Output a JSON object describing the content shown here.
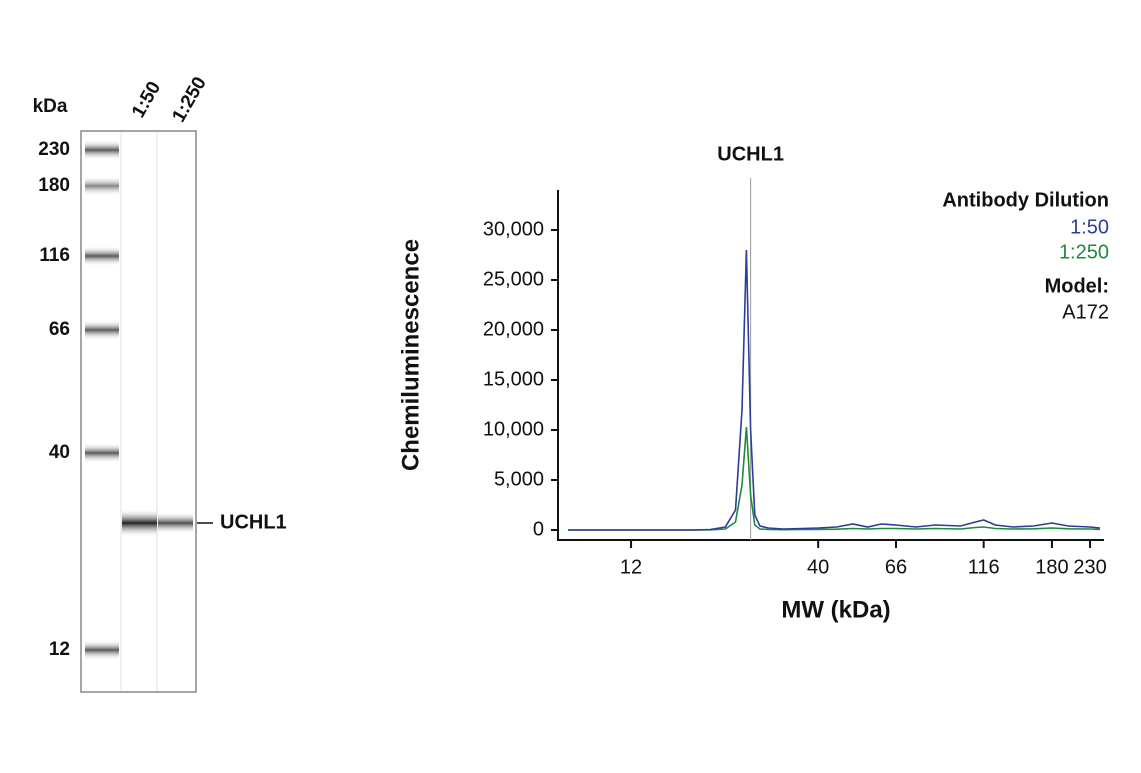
{
  "gel": {
    "unit_label": "kDa",
    "lanes": [
      "1:50",
      "1:250"
    ],
    "ladder": [
      230,
      180,
      116,
      66,
      40,
      12
    ],
    "band_label": "UCHL1"
  },
  "chart_data": {
    "type": "line",
    "xlabel": "MW (kDa)",
    "ylabel": "Chemiluminescence",
    "x": [
      8,
      10,
      12,
      15,
      18,
      20,
      22,
      23.5,
      24.5,
      25.2,
      25.9,
      26.6,
      27.5,
      29,
      32,
      36,
      40,
      45,
      50,
      55,
      60,
      66,
      75,
      85,
      100,
      110,
      116,
      125,
      140,
      160,
      180,
      200,
      230,
      245
    ],
    "series": [
      {
        "name": "1:50",
        "color": "#2b3d9a",
        "values": [
          0,
          0,
          0,
          0,
          0,
          50,
          300,
          2000,
          12000,
          28000,
          10000,
          1500,
          400,
          200,
          100,
          150,
          200,
          300,
          600,
          300,
          600,
          500,
          300,
          500,
          400,
          800,
          1000,
          500,
          300,
          400,
          700,
          400,
          300,
          200
        ]
      },
      {
        "name": "1:250",
        "color": "#1e8a3e",
        "values": [
          0,
          0,
          0,
          0,
          0,
          20,
          100,
          800,
          4500,
          10300,
          3500,
          500,
          100,
          50,
          30,
          50,
          60,
          80,
          150,
          100,
          150,
          150,
          100,
          150,
          100,
          250,
          300,
          150,
          100,
          120,
          200,
          120,
          100,
          60
        ]
      }
    ],
    "xscale": "log",
    "xlim": [
      7.5,
      250
    ],
    "xticks": [
      12,
      40,
      66,
      116,
      180,
      230
    ],
    "ylim": [
      -1000,
      34000
    ],
    "yticks": [
      0,
      {
        "value": 5000,
        "label": "5,000"
      },
      {
        "value": 10000,
        "label": "10,000"
      },
      {
        "value": 15000,
        "label": "15,000"
      },
      {
        "value": 20000,
        "label": "20,000"
      },
      {
        "value": 25000,
        "label": "25,000"
      },
      {
        "value": 30000,
        "label": "30,000"
      }
    ],
    "annotations": [
      {
        "text": "UCHL1",
        "x": 25.9
      }
    ],
    "legend_title": "Antibody Dilution",
    "legend_position": "upper right",
    "notes": [
      {
        "title": "Model:",
        "text": "A172"
      }
    ]
  }
}
